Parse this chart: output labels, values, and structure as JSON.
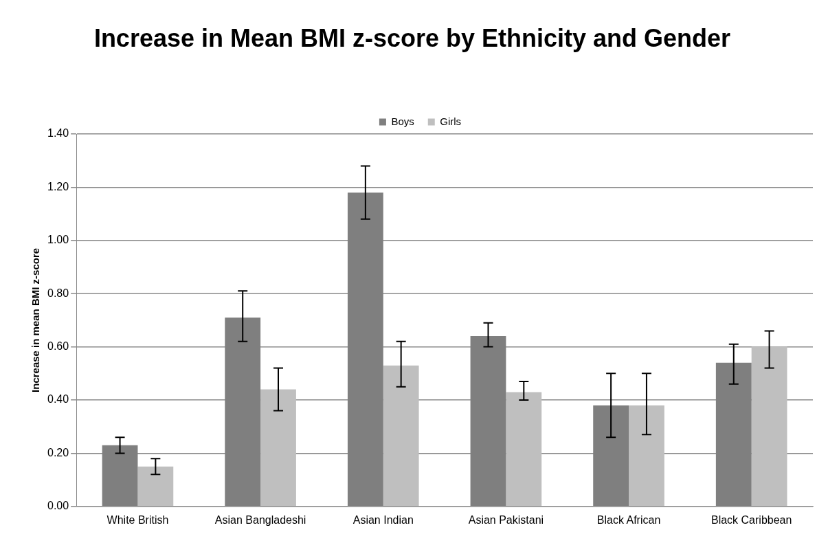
{
  "chart_data": {
    "type": "bar",
    "title": "Increase in Mean BMI z-score by Ethnicity and Gender",
    "ylabel": "Increase in mean BMI z-score",
    "categories": [
      "White British",
      "Asian Bangladeshi",
      "Asian Indian",
      "Asian Pakistani",
      "Black African",
      "Black Caribbean"
    ],
    "series": [
      {
        "name": "Boys",
        "color": "#7f7f7f",
        "values": [
          0.23,
          0.71,
          1.18,
          0.64,
          0.38,
          0.54
        ],
        "errors": [
          [
            0.2,
            0.26
          ],
          [
            0.62,
            0.81
          ],
          [
            1.08,
            1.28
          ],
          [
            0.6,
            0.69
          ],
          [
            0.26,
            0.5
          ],
          [
            0.46,
            0.61
          ]
        ]
      },
      {
        "name": "Girls",
        "color": "#bfbfbf",
        "values": [
          0.15,
          0.44,
          0.53,
          0.43,
          0.38,
          0.6
        ],
        "errors": [
          [
            0.12,
            0.18
          ],
          [
            0.36,
            0.52
          ],
          [
            0.45,
            0.62
          ],
          [
            0.4,
            0.47
          ],
          [
            0.27,
            0.5
          ],
          [
            0.52,
            0.66
          ]
        ]
      }
    ],
    "ylim": [
      0,
      1.4
    ],
    "yticks": [
      {
        "value": 0,
        "label": "0.00"
      },
      {
        "value": 0.2,
        "label": "0.20"
      },
      {
        "value": 0.4,
        "label": "0.40"
      },
      {
        "value": 0.6,
        "label": "0.60"
      },
      {
        "value": 0.8,
        "label": "0.80"
      },
      {
        "value": 1.0,
        "label": "1.00"
      },
      {
        "value": 1.2,
        "label": "1.20"
      },
      {
        "value": 1.4,
        "label": "1.40"
      }
    ],
    "grid": "y",
    "legend": "top"
  }
}
